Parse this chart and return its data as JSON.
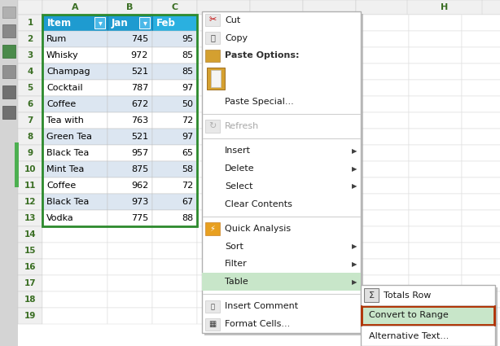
{
  "figsize": [
    6.14,
    4.25
  ],
  "dpi": 100,
  "bg_color": "#c8c8c8",
  "table_header_bg": "#1e9bd0",
  "table_header_text": "#ffffff",
  "table_row_odd": "#dce6f1",
  "table_row_even": "#ffffff",
  "row_num_color": "#3a6e23",
  "col_letter_color": "#3a6e23",
  "items": [
    "Item",
    "Rum",
    "Whisky",
    "Champag",
    "Cocktail",
    "Coffee",
    "Tea with ",
    "Green Tea",
    "Black Tea",
    "Mint Tea",
    "Coffee",
    "Black Tea",
    "Vodka"
  ],
  "jan_vals": [
    "Jan",
    "745",
    "972",
    "521",
    "787",
    "672",
    "763",
    "521",
    "957",
    "875",
    "962",
    "973",
    "775"
  ],
  "feb_vals": [
    "Feb",
    "95",
    "85",
    "85",
    "97",
    "50",
    "72",
    "97",
    "65",
    "58",
    "72",
    "67",
    "88"
  ],
  "highlight_border": "#b03000"
}
